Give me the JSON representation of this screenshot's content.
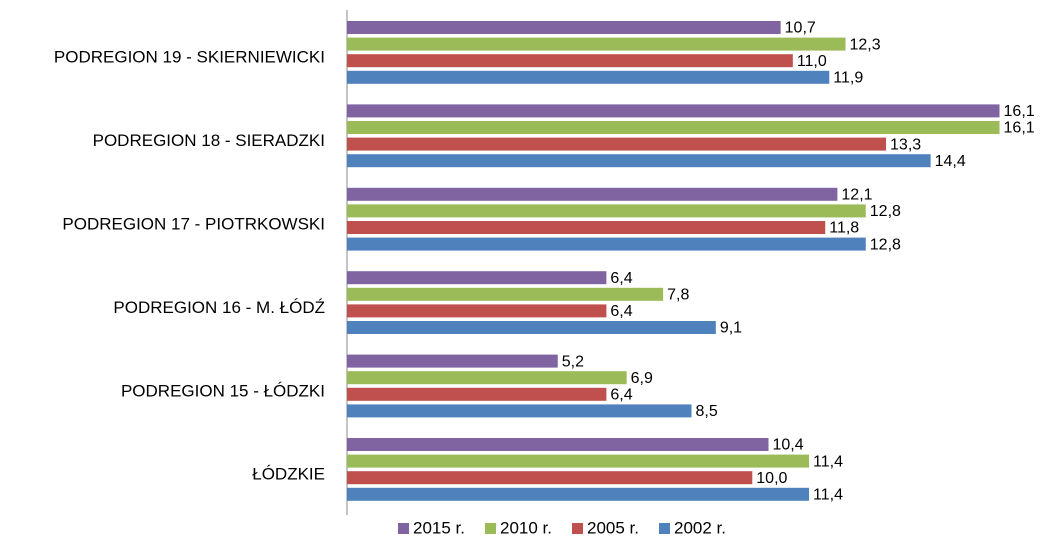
{
  "chart_data": {
    "type": "bar",
    "orientation": "horizontal",
    "categories": [
      "PODREGION 19 - SKIERNIEWICKI",
      "PODREGION 18 - SIERADZKI",
      "PODREGION 17 - PIOTRKOWSKI",
      "PODREGION 16 - M. ŁÓDŹ",
      "PODREGION 15 - ŁÓDZKI",
      "ŁÓDZKIE"
    ],
    "series": [
      {
        "name": "2015 r.",
        "color": "#8064a2",
        "values": [
          10.7,
          16.1,
          12.1,
          6.4,
          5.2,
          10.4
        ],
        "value_labels": [
          "10,7",
          "16,1",
          "12,1",
          "6,4",
          "5,2",
          "10,4"
        ]
      },
      {
        "name": "2010 r.",
        "color": "#9bbb59",
        "values": [
          12.3,
          16.1,
          12.8,
          7.8,
          6.9,
          11.4
        ],
        "value_labels": [
          "12,3",
          "16,1",
          "12,8",
          "7,8",
          "6,9",
          "11,4"
        ]
      },
      {
        "name": "2005 r.",
        "color": "#c0504d",
        "values": [
          11.0,
          13.3,
          11.8,
          6.4,
          6.4,
          10.0
        ],
        "value_labels": [
          "11,0",
          "13,3",
          "11,8",
          "6,4",
          "6,4",
          "10,0"
        ]
      },
      {
        "name": "2002 r.",
        "color": "#4f81bd",
        "values": [
          11.9,
          14.4,
          12.8,
          9.1,
          8.5,
          11.4
        ],
        "value_labels": [
          "11,9",
          "14,4",
          "12,8",
          "9,1",
          "8,5",
          "11,4"
        ]
      }
    ],
    "xlim": [
      0,
      17
    ],
    "legend": "bottom"
  }
}
